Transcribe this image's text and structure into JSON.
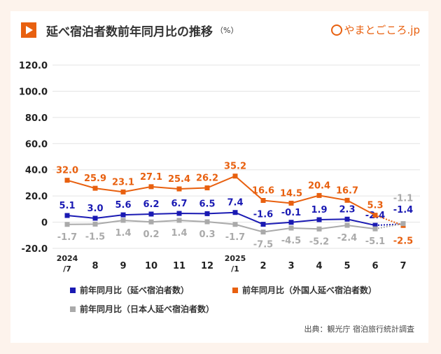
{
  "title": "延べ宿泊者数前年同月比の推移",
  "unit": "（%）",
  "logo": "やまとごころ.jp",
  "source": "出典：観光庁 宿泊旅行統計調査",
  "chart_data": {
    "type": "line",
    "categories": [
      "2024\n/7",
      "8",
      "9",
      "10",
      "11",
      "12",
      "2025\n/1",
      "2",
      "3",
      "4",
      "5",
      "6",
      "7"
    ],
    "ylim": [
      -20,
      120
    ],
    "yticks": [
      "120.0",
      "100.0",
      "80.0",
      "60.0",
      "40.0",
      "20.0",
      "0",
      "-20.0"
    ],
    "ytick_values": [
      120,
      100,
      80,
      60,
      40,
      20,
      0,
      -20
    ],
    "grid": true,
    "legend_placement": "bottom",
    "last_segment_dotted": true,
    "series": [
      {
        "name": "前年同月比（延べ宿泊者数）",
        "color": "#1a1ab3",
        "values": [
          5.1,
          3.0,
          5.6,
          6.2,
          6.7,
          6.5,
          7.4,
          -1.6,
          -0.1,
          1.9,
          2.3,
          -2.4,
          -1.4
        ]
      },
      {
        "name": "前年同月比（外国人延べ宿泊者数）",
        "color": "#e8600f",
        "values": [
          32.0,
          25.9,
          23.1,
          27.1,
          25.4,
          26.2,
          35.2,
          16.6,
          14.5,
          20.4,
          16.7,
          5.3,
          -2.5
        ]
      },
      {
        "name": "前年同月比（日本人延べ宿泊者数）",
        "color": "#aaaaaa",
        "values": [
          -1.7,
          -1.5,
          1.4,
          0.2,
          1.4,
          0.3,
          -1.7,
          -7.5,
          -4.5,
          -5.2,
          -2.4,
          -5.1,
          -1.1
        ]
      }
    ]
  }
}
